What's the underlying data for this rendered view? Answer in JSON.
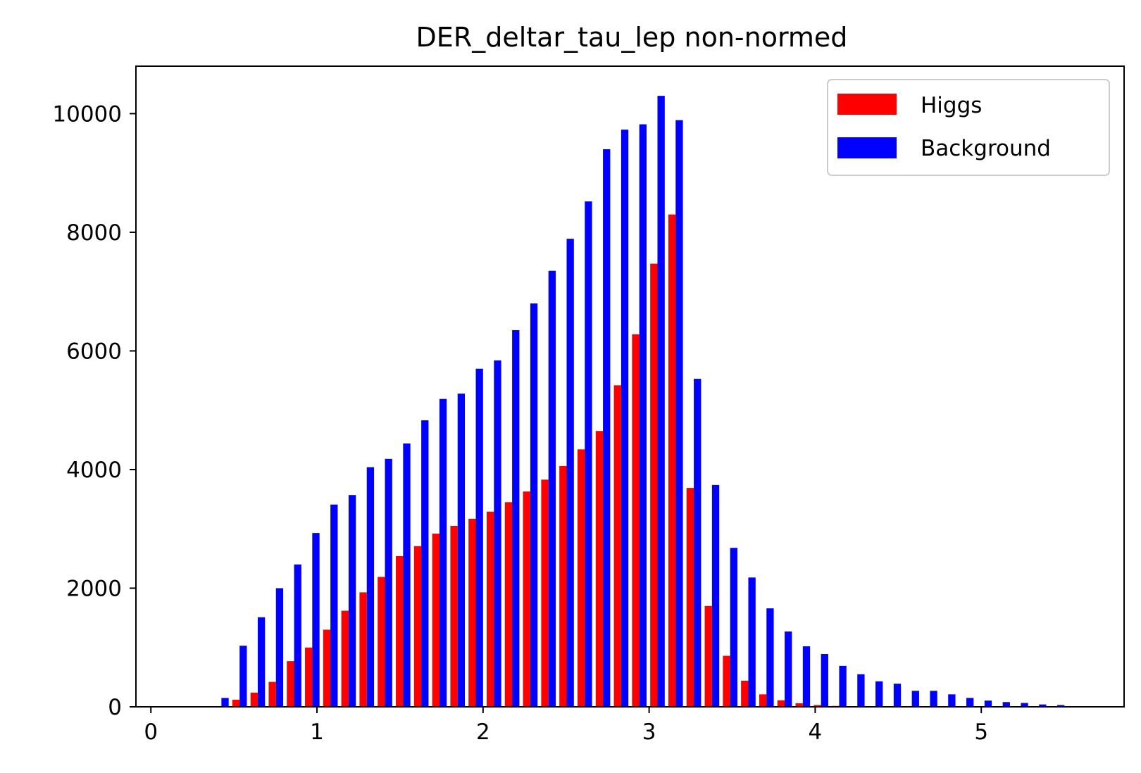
{
  "chart_data": {
    "type": "bar",
    "title": "DER_deltar_tau_lep non-normed",
    "xlabel": "",
    "ylabel": "",
    "xlim": [
      -0.09,
      5.86
    ],
    "ylim": [
      0,
      10800
    ],
    "xticks": [
      0,
      1,
      2,
      3,
      4,
      5
    ],
    "yticks": [
      0,
      2000,
      4000,
      6000,
      8000,
      10000
    ],
    "bin_start": 0.37,
    "bin_width": 0.1094,
    "legend_position": "upper right",
    "grid": false,
    "series": [
      {
        "name": "Higgs",
        "color": "#ff0000",
        "values": [
          0,
          120,
          240,
          420,
          770,
          1000,
          1300,
          1620,
          1930,
          2190,
          2540,
          2710,
          2920,
          3050,
          3170,
          3290,
          3450,
          3630,
          3830,
          4060,
          4340,
          4650,
          5420,
          6280,
          7470,
          8300,
          3690,
          1700,
          860,
          440,
          210,
          110,
          60,
          30,
          15,
          8,
          5,
          3,
          2,
          1,
          1,
          0,
          0,
          0,
          0,
          0
        ]
      },
      {
        "name": "Background",
        "color": "#0000ff",
        "values": [
          150,
          1030,
          1510,
          2000,
          2400,
          2930,
          3410,
          3570,
          4040,
          4180,
          4440,
          4830,
          5190,
          5280,
          5700,
          5840,
          6350,
          6800,
          7350,
          7890,
          8520,
          9400,
          9730,
          9820,
          10300,
          9890,
          5530,
          3740,
          2680,
          2180,
          1660,
          1270,
          1020,
          890,
          690,
          550,
          430,
          390,
          270,
          270,
          210,
          150,
          105,
          80,
          65,
          40,
          30,
          0
        ]
      }
    ]
  }
}
